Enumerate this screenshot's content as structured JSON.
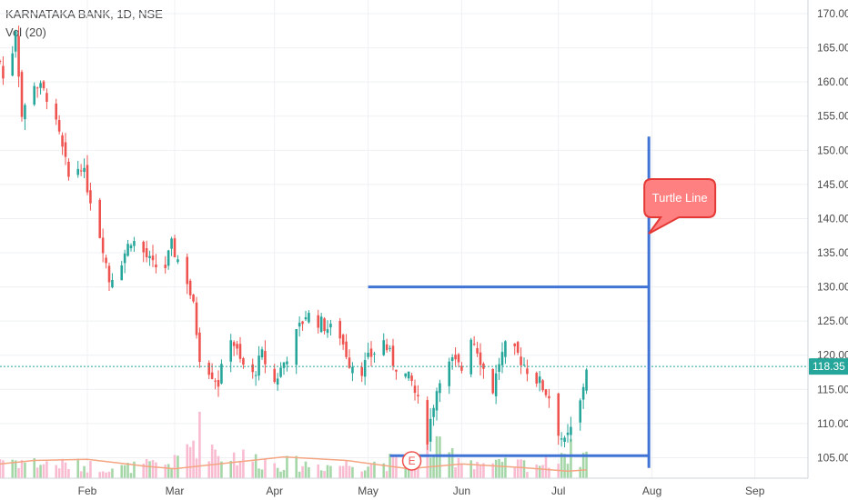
{
  "header": {
    "symbol_line": "KARNATAKA BANK, 1D, NSE",
    "volume_line": "Vol (20)"
  },
  "colors": {
    "up": "#26a69a",
    "down": "#ef5350",
    "up_volume": "#a5d6a7",
    "down_volume": "#f8bbd0",
    "volume_ma": "#f4a582",
    "drawing": "#3f74d6",
    "last_price_line": "#26a69a",
    "callout_fill": "#ff8080",
    "callout_border": "#e53935"
  },
  "annotations": {
    "turtle_label": "Turtle Line",
    "earnings_marker": "E"
  },
  "chart_data": {
    "type": "candlestick",
    "ylim": [
      102,
      172
    ],
    "y_ticks": [
      105.0,
      110.0,
      115.0,
      120.0,
      125.0,
      130.0,
      135.0,
      140.0,
      145.0,
      150.0,
      155.0,
      160.0,
      165.0,
      170.0
    ],
    "x_range": [
      "2018-01-04",
      "2018-09-20"
    ],
    "x_ticks": [
      {
        "label": "Feb",
        "date": "2018-02-01"
      },
      {
        "label": "Mar",
        "date": "2018-03-01"
      },
      {
        "label": "Apr",
        "date": "2018-04-02"
      },
      {
        "label": "May",
        "date": "2018-05-02"
      },
      {
        "label": "Jun",
        "date": "2018-06-01"
      },
      {
        "label": "Jul",
        "date": "2018-07-02"
      },
      {
        "label": "Aug",
        "date": "2018-08-01"
      },
      {
        "label": "Sep",
        "date": "2018-09-03"
      }
    ],
    "last_price": 118.35,
    "last_price_label": "118.35",
    "close_path": [
      [
        "2018-01-04",
        163
      ],
      [
        "2018-01-06",
        158
      ],
      [
        "2018-01-09",
        168
      ],
      [
        "2018-01-11",
        155
      ],
      [
        "2018-01-15",
        160
      ],
      [
        "2018-01-19",
        158
      ],
      [
        "2018-01-23",
        152
      ],
      [
        "2018-01-26",
        146
      ],
      [
        "2018-01-30",
        148
      ],
      [
        "2018-02-02",
        143
      ],
      [
        "2018-02-06",
        136
      ],
      [
        "2018-02-08",
        131
      ],
      [
        "2018-02-12",
        134
      ],
      [
        "2018-02-15",
        137
      ],
      [
        "2018-02-19",
        135
      ],
      [
        "2018-02-22",
        133
      ],
      [
        "2018-02-26",
        133
      ],
      [
        "2018-02-28",
        136
      ],
      [
        "2018-03-02",
        134
      ],
      [
        "2018-03-05",
        131
      ],
      [
        "2018-03-07",
        127
      ],
      [
        "2018-03-09",
        120
      ],
      [
        "2018-03-12",
        118
      ],
      [
        "2018-03-15",
        116
      ],
      [
        "2018-03-19",
        123
      ],
      [
        "2018-03-22",
        119
      ],
      [
        "2018-03-26",
        117
      ],
      [
        "2018-03-29",
        120
      ],
      [
        "2018-04-02",
        116
      ],
      [
        "2018-04-05",
        119
      ],
      [
        "2018-04-09",
        123
      ],
      [
        "2018-04-12",
        126
      ],
      [
        "2018-04-16",
        125
      ],
      [
        "2018-04-19",
        124
      ],
      [
        "2018-04-23",
        123
      ],
      [
        "2018-04-26",
        119
      ],
      [
        "2018-04-30",
        118
      ],
      [
        "2018-05-03",
        120
      ],
      [
        "2018-05-07",
        122
      ],
      [
        "2018-05-10",
        119
      ],
      [
        "2018-05-14",
        117
      ],
      [
        "2018-05-16",
        116
      ],
      [
        "2018-05-18",
        113
      ],
      [
        "2018-05-21",
        108
      ],
      [
        "2018-05-23",
        113
      ],
      [
        "2018-05-25",
        117
      ],
      [
        "2018-05-29",
        119
      ],
      [
        "2018-06-01",
        118
      ],
      [
        "2018-06-04",
        123
      ],
      [
        "2018-06-06",
        121
      ],
      [
        "2018-06-08",
        118
      ],
      [
        "2018-06-11",
        115
      ],
      [
        "2018-06-13",
        119
      ],
      [
        "2018-06-15",
        121
      ],
      [
        "2018-06-19",
        120
      ],
      [
        "2018-06-22",
        118
      ],
      [
        "2018-06-26",
        116
      ],
      [
        "2018-06-29",
        114
      ],
      [
        "2018-07-02",
        109
      ],
      [
        "2018-07-04",
        107
      ],
      [
        "2018-07-06",
        109
      ],
      [
        "2018-07-09",
        113
      ],
      [
        "2018-07-11",
        118.35
      ]
    ],
    "volume_profile": [
      [
        "2018-01-04",
        0.4
      ],
      [
        "2018-01-15",
        0.3
      ],
      [
        "2018-01-30",
        0.25
      ],
      [
        "2018-02-12",
        0.2
      ],
      [
        "2018-03-01",
        0.3
      ],
      [
        "2018-03-09",
        0.9
      ],
      [
        "2018-03-15",
        0.5
      ],
      [
        "2018-04-02",
        0.3
      ],
      [
        "2018-04-20",
        0.25
      ],
      [
        "2018-05-18",
        0.35
      ],
      [
        "2018-05-21",
        0.6
      ],
      [
        "2018-06-10",
        0.25
      ],
      [
        "2018-06-29",
        0.3
      ],
      [
        "2018-07-02",
        0.55
      ],
      [
        "2018-07-11",
        0.45
      ]
    ],
    "volume_ma_path": [
      [
        "2018-01-04",
        0.12
      ],
      [
        "2018-01-15",
        0.15
      ],
      [
        "2018-02-01",
        0.16
      ],
      [
        "2018-02-20",
        0.1
      ],
      [
        "2018-03-01",
        0.08
      ],
      [
        "2018-03-15",
        0.12
      ],
      [
        "2018-04-05",
        0.18
      ],
      [
        "2018-04-25",
        0.15
      ],
      [
        "2018-05-15",
        0.08
      ],
      [
        "2018-06-01",
        0.12
      ],
      [
        "2018-06-20",
        0.09
      ],
      [
        "2018-07-05",
        0.06
      ],
      [
        "2018-07-11",
        0.07
      ]
    ],
    "drawings": {
      "turtle_vertical_line": {
        "date": "2018-07-31",
        "from": 103.5,
        "to": 152
      },
      "upper_horizontal_line": {
        "from_date": "2018-05-02",
        "to_date": "2018-07-31",
        "price": 130
      },
      "lower_horizontal_line": {
        "from_date": "2018-05-09",
        "to_date": "2018-07-31",
        "price": 105.3
      }
    },
    "earnings_marker": {
      "date": "2018-05-16"
    }
  }
}
